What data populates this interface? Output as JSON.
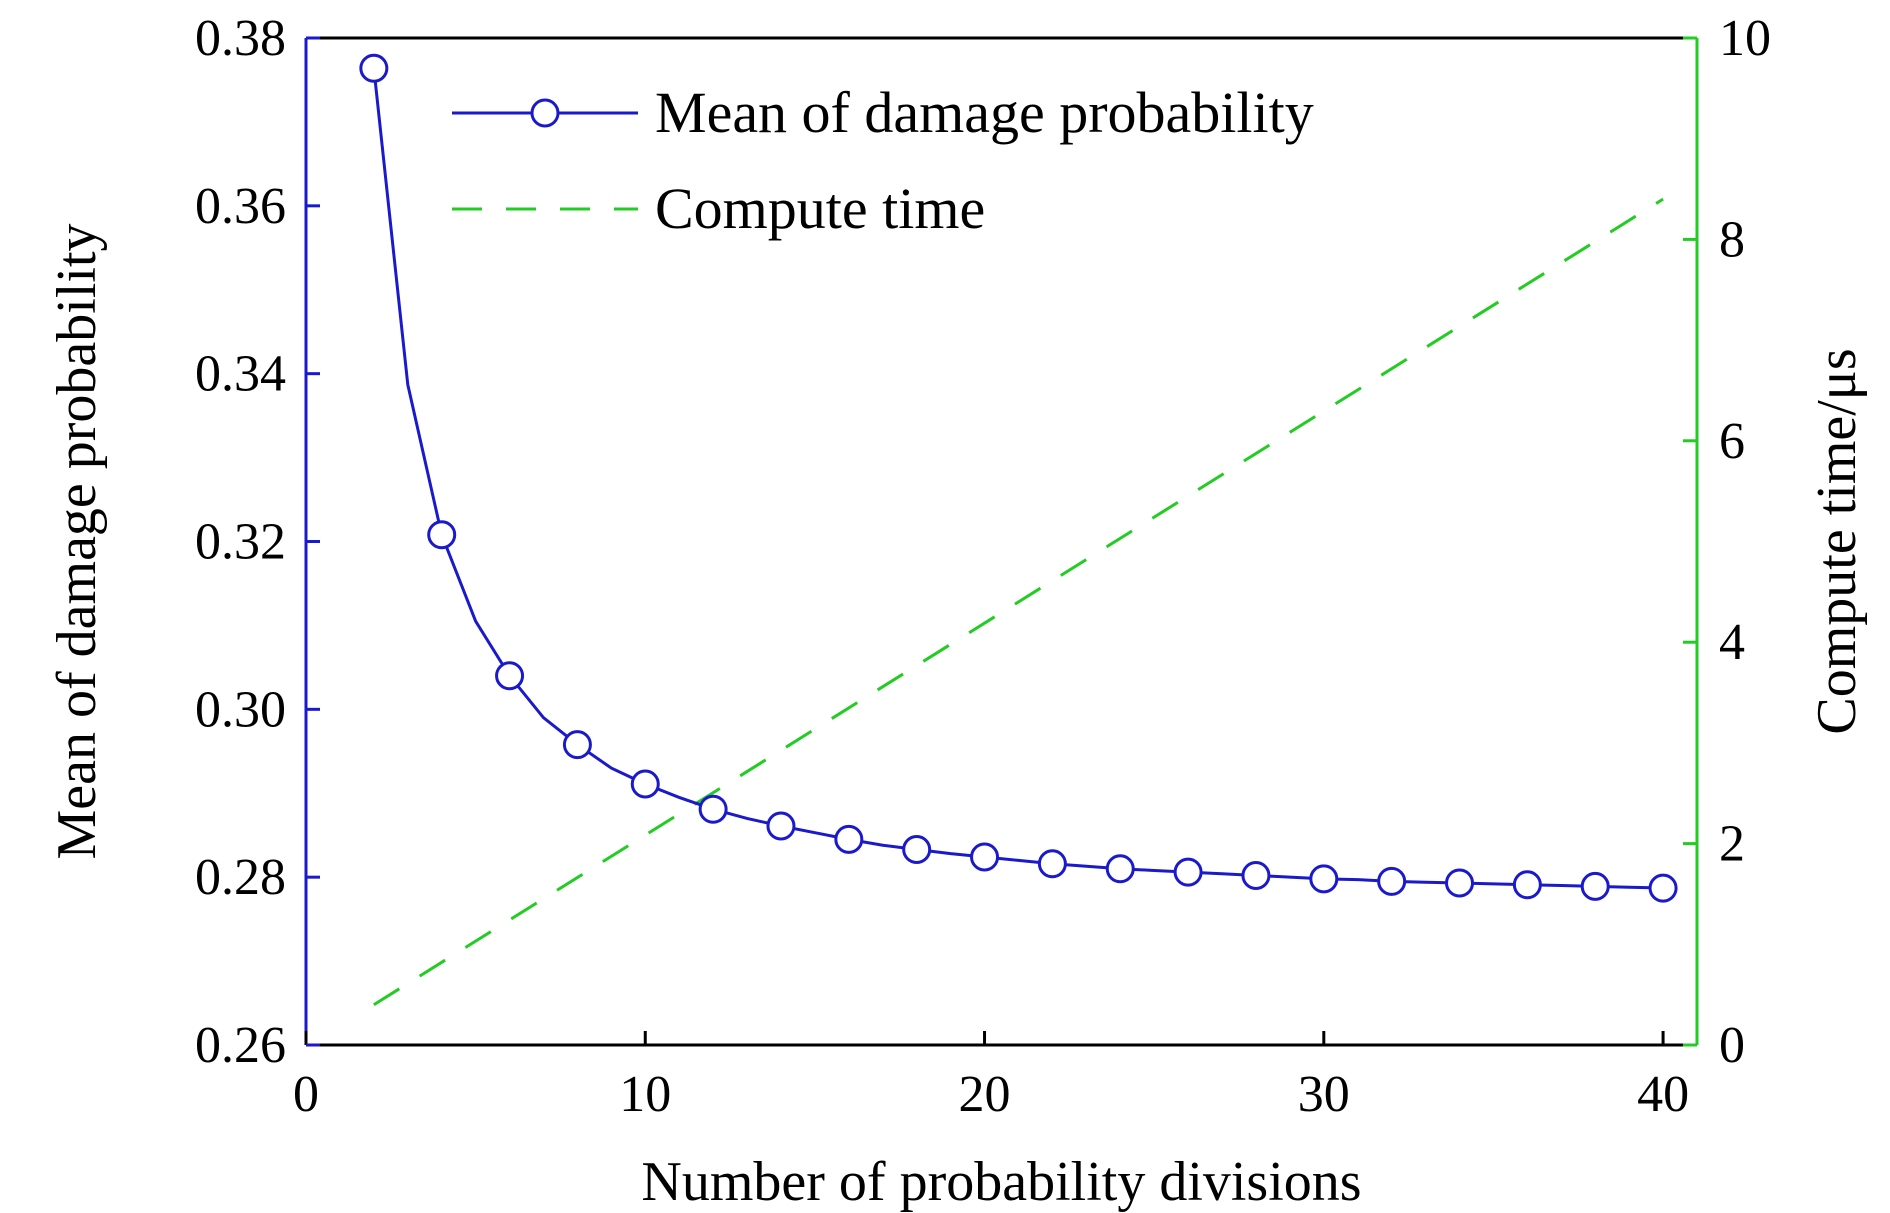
{
  "chart_data": {
    "type": "line",
    "xlabel": "Number of probability divisions",
    "ylabel_left": "Mean of damage probability",
    "ylabel_right": "Compute time/μs",
    "xlim": [
      0,
      41
    ],
    "ylim_left": [
      0.26,
      0.38
    ],
    "ylim_right": [
      0,
      10
    ],
    "x_ticks": [
      0,
      10,
      20,
      30,
      40
    ],
    "x_tick_labels": [
      "0",
      "10",
      "20",
      "30",
      "40"
    ],
    "y_left_ticks": [
      0.26,
      0.28,
      0.3,
      0.32,
      0.34,
      0.36,
      0.38
    ],
    "y_left_tick_labels": [
      "0.26",
      "0.28",
      "0.30",
      "0.32",
      "0.34",
      "0.36",
      "0.38"
    ],
    "y_right_ticks": [
      0,
      2,
      4,
      6,
      8,
      10
    ],
    "y_right_tick_labels": [
      "0",
      "2",
      "4",
      "6",
      "8",
      "10"
    ],
    "grid": false,
    "legend_position": "top-left",
    "series": [
      {
        "name": "Mean of damage probability",
        "axis": "left",
        "color": "#1a1acc",
        "style": "solid",
        "marker": "open-circle",
        "x": [
          2,
          3,
          4,
          5,
          6,
          7,
          8,
          9,
          10,
          11,
          12,
          13,
          14,
          15,
          16,
          17,
          18,
          19,
          20,
          21,
          22,
          23,
          24,
          25,
          26,
          27,
          28,
          29,
          30,
          31,
          32,
          33,
          34,
          35,
          36,
          37,
          38,
          39,
          40
        ],
        "values": [
          0.3764,
          0.3387,
          0.3208,
          0.3105,
          0.304,
          0.299,
          0.2958,
          0.293,
          0.2911,
          0.2895,
          0.2881,
          0.287,
          0.2861,
          0.2853,
          0.2845,
          0.2838,
          0.2833,
          0.2828,
          0.2824,
          0.282,
          0.2816,
          0.2813,
          0.281,
          0.2808,
          0.2806,
          0.2804,
          0.2802,
          0.28,
          0.2798,
          0.2797,
          0.2795,
          0.2794,
          0.2793,
          0.2792,
          0.2791,
          0.279,
          0.2789,
          0.2788,
          0.2787
        ],
        "marker_x": [
          2,
          4,
          6,
          8,
          10,
          12,
          14,
          16,
          18,
          20,
          22,
          24,
          26,
          28,
          30,
          32,
          34,
          36,
          38,
          40
        ]
      },
      {
        "name": "Compute time",
        "axis": "right",
        "color": "#22cc22",
        "style": "dashed",
        "marker": "none",
        "x": [
          2,
          40
        ],
        "values": [
          0.4,
          8.4
        ]
      }
    ]
  },
  "colors": {
    "frame": "#000000",
    "left_axis": "#1a1acc",
    "right_axis": "#22cc22"
  }
}
